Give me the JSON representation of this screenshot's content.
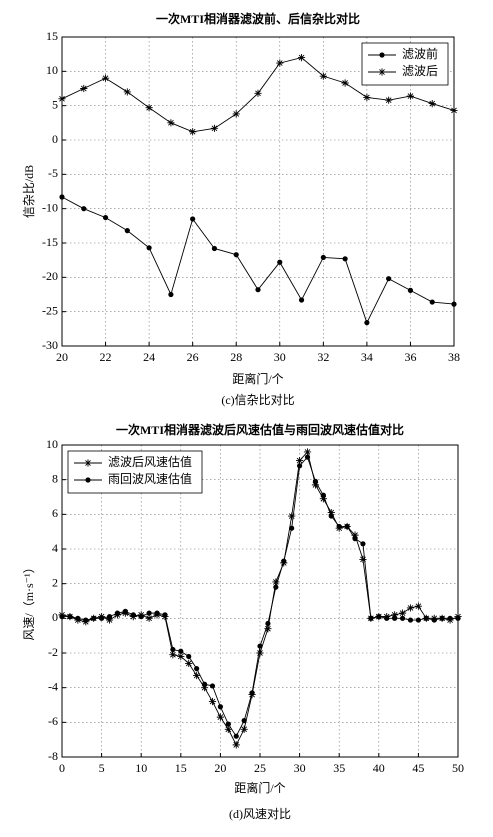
{
  "chart_data": [
    {
      "type": "line",
      "title": "一次MTI相消器滤波前、后信杂比对比",
      "x_label": "距离门/个",
      "y_label": "信杂比/dB",
      "caption": "(c)信杂比对比",
      "x": [
        20,
        21,
        22,
        23,
        24,
        25,
        26,
        27,
        28,
        29,
        30,
        31,
        32,
        33,
        34,
        35,
        36,
        37,
        38
      ],
      "series": [
        {
          "name": "滤波前",
          "color": "#000000",
          "marker": "circle",
          "values": [
            -8.3,
            -10,
            -11.3,
            -13.2,
            -15.7,
            -22.5,
            -11.5,
            -15.8,
            -16.7,
            -21.8,
            -17.8,
            -23.3,
            -17.1,
            -17.3,
            -26.6,
            -20.2,
            -21.9,
            -23.6,
            -23.9
          ]
        },
        {
          "name": "滤波后",
          "color": "#000000",
          "marker": "star",
          "values": [
            6,
            7.5,
            9,
            7,
            4.7,
            2.5,
            1.2,
            1.7,
            3.8,
            6.8,
            11.2,
            12,
            9.3,
            8.3,
            6.2,
            5.8,
            6.4,
            5.3,
            4.3
          ]
        }
      ],
      "xlim": [
        20,
        38
      ],
      "xticks": [
        20,
        22,
        24,
        26,
        28,
        30,
        32,
        34,
        36,
        38
      ],
      "ylim": [
        -30,
        15
      ],
      "yticks": [
        -30,
        -25,
        -20,
        -15,
        -10,
        -5,
        0,
        5,
        10,
        15
      ],
      "grid": true,
      "legend": "upper right"
    },
    {
      "type": "line",
      "title": "一次MTI相消器滤波后风速估值与雨回波风速估值对比",
      "x_label": "距离门/个",
      "y_label": "风速/（m·s⁻¹）",
      "caption": "(d)风速对比",
      "x": [
        0,
        1,
        2,
        3,
        4,
        5,
        6,
        7,
        8,
        9,
        10,
        11,
        12,
        13,
        14,
        15,
        16,
        17,
        18,
        19,
        20,
        21,
        22,
        23,
        24,
        25,
        26,
        27,
        28,
        29,
        30,
        31,
        32,
        33,
        34,
        35,
        36,
        37,
        38,
        39,
        40,
        41,
        42,
        43,
        44,
        45,
        46,
        47,
        48,
        49,
        50
      ],
      "series": [
        {
          "name": "滤波后风速估值",
          "color": "#000000",
          "marker": "star",
          "values": [
            0.2,
            0.1,
            -0.1,
            -0.2,
            0,
            0.1,
            -0.1,
            0.2,
            0.3,
            0.1,
            0.2,
            0,
            0.2,
            0.1,
            -2.1,
            -2.2,
            -2.6,
            -3.3,
            -4,
            -4.8,
            -5.7,
            -6.4,
            -7.3,
            -6.4,
            -4.4,
            -2,
            -0.6,
            2.1,
            3.2,
            5.9,
            9.1,
            9.6,
            7.7,
            6.9,
            6.1,
            5.2,
            5.3,
            4.8,
            3.4,
            0,
            0.1,
            0.1,
            0.2,
            0.3,
            0.6,
            0.7,
            0,
            0,
            0,
            -0.1,
            0.1
          ]
        },
        {
          "name": "雨回波风速估值",
          "color": "#000000",
          "marker": "circle",
          "values": [
            0.1,
            0.1,
            0,
            -0.1,
            0,
            0,
            0.1,
            0.3,
            0.4,
            0.2,
            0.1,
            0.3,
            0.3,
            0.2,
            -1.8,
            -1.9,
            -2.2,
            -2.9,
            -3.8,
            -3.9,
            -5.1,
            -6.1,
            -6.8,
            -5.9,
            -4.3,
            -1.6,
            -0.3,
            1.8,
            3.3,
            5.2,
            8.8,
            9.3,
            7.9,
            7.1,
            5.9,
            5.3,
            5.3,
            4.6,
            4.3,
            0,
            0.1,
            0,
            0,
            0,
            -0.1,
            -0.1,
            0,
            -0.1,
            0,
            0,
            0
          ]
        }
      ],
      "xlim": [
        0,
        50
      ],
      "xticks": [
        0,
        5,
        10,
        15,
        20,
        25,
        30,
        35,
        40,
        45,
        50
      ],
      "ylim": [
        -8,
        10
      ],
      "yticks": [
        -8,
        -6,
        -4,
        -2,
        0,
        2,
        4,
        6,
        8,
        10
      ],
      "grid": true,
      "legend": "upper left"
    }
  ]
}
